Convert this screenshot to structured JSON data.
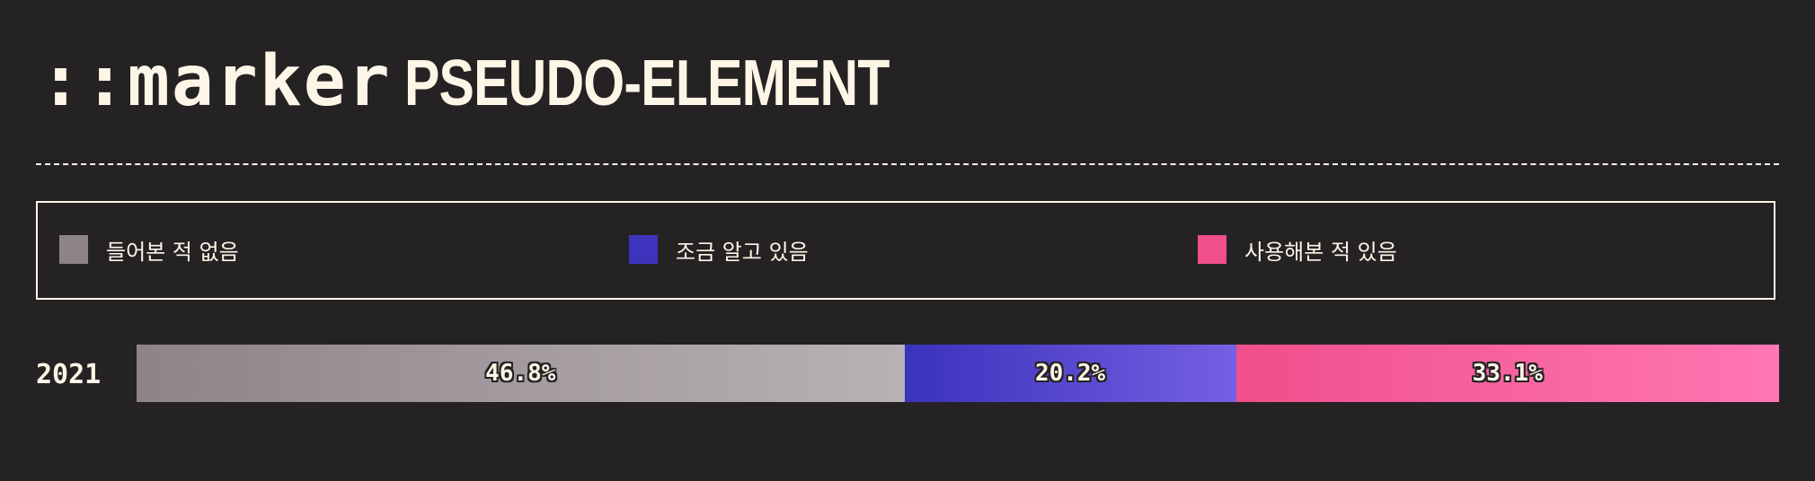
{
  "title": {
    "code": "::marker",
    "rest": "PSEUDO-ELEMENT"
  },
  "legend": [
    {
      "label": "들어본 적 없음",
      "color": "#8d8489"
    },
    {
      "label": "조금 알고 있음",
      "color": "#3d33bd"
    },
    {
      "label": "사용해본 적 있음",
      "color": "#ef4f8b"
    }
  ],
  "chart_data": {
    "type": "bar",
    "orientation": "horizontal-stacked",
    "categories": [
      "2021"
    ],
    "series": [
      {
        "name": "들어본 적 없음",
        "values": [
          46.8
        ],
        "label": "46.8%",
        "color_start": "#8d8489",
        "color_end": "#b8b1b5"
      },
      {
        "name": "조금 알고 있음",
        "values": [
          20.2
        ],
        "label": "20.2%",
        "color_start": "#3a32bd",
        "color_end": "#7560e2"
      },
      {
        "name": "사용해본 적 있음",
        "values": [
          33.1
        ],
        "label": "33.1%",
        "color_start": "#ef4f8b",
        "color_end": "#ff77b3"
      }
    ]
  }
}
